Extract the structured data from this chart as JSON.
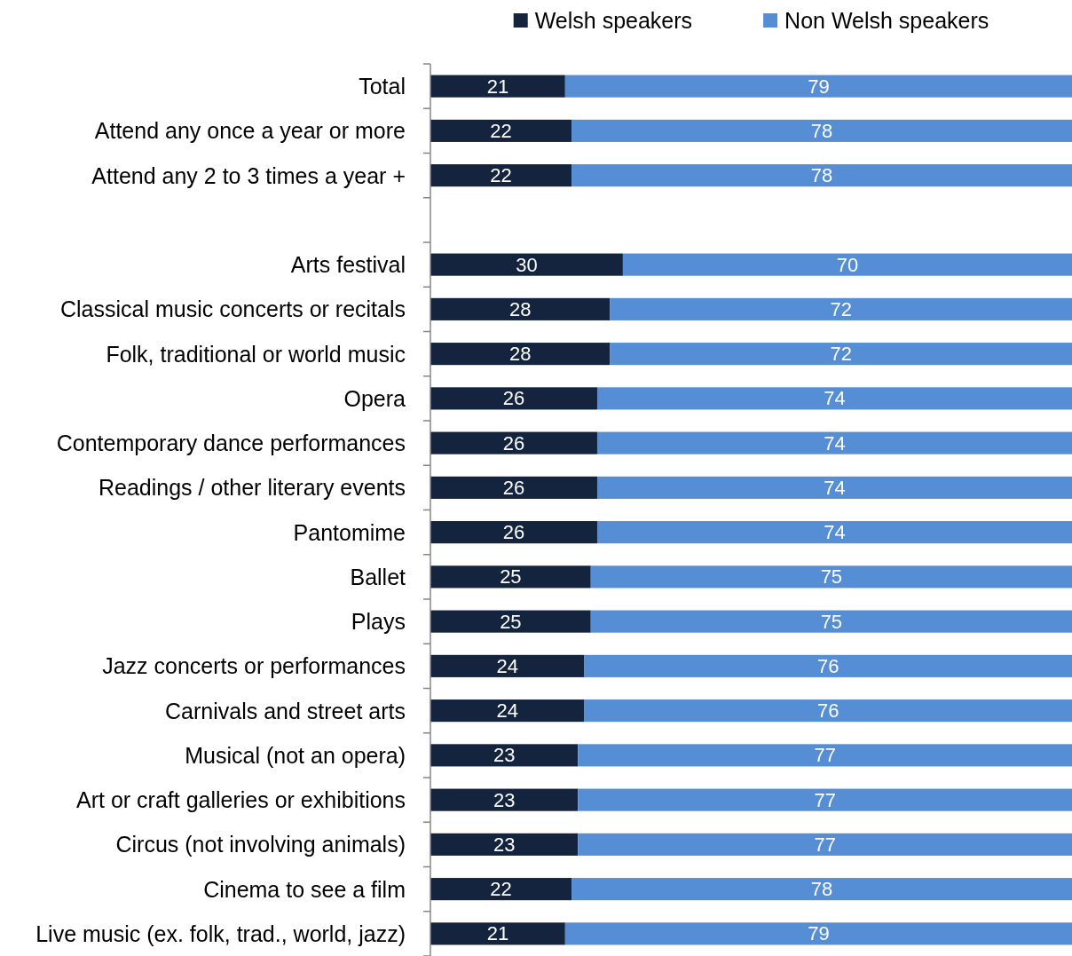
{
  "chart_data": {
    "type": "bar",
    "orientation": "horizontal",
    "stacked": true,
    "categories": [
      "Total",
      "Attend any once a year or more",
      "Attend any 2 to 3 times a year +",
      null,
      "Arts festival",
      "Classical music concerts or recitals",
      "Folk, traditional or world music",
      "Opera",
      "Contemporary dance performances",
      "Readings / other literary events",
      "Pantomime",
      "Ballet",
      "Plays",
      "Jazz concerts or performances",
      "Carnivals and street arts",
      "Musical (not an opera)",
      "Art or craft galleries or exhibitions",
      "Circus (not involving animals)",
      "Cinema to see a film",
      "Live music (ex. folk, trad., world, jazz)"
    ],
    "series": [
      {
        "name": "Welsh speakers",
        "color": "#14243f",
        "values": [
          21,
          22,
          22,
          null,
          30,
          28,
          28,
          26,
          26,
          26,
          26,
          25,
          25,
          24,
          24,
          23,
          23,
          23,
          22,
          21
        ]
      },
      {
        "name": "Non Welsh speakers",
        "color": "#558ed5",
        "values": [
          79,
          78,
          78,
          null,
          70,
          72,
          72,
          74,
          74,
          74,
          74,
          75,
          75,
          76,
          76,
          77,
          77,
          77,
          78,
          79
        ]
      }
    ],
    "xlim": [
      0,
      100
    ],
    "data_labels": true,
    "legend": "top",
    "tick_labels": "y"
  }
}
